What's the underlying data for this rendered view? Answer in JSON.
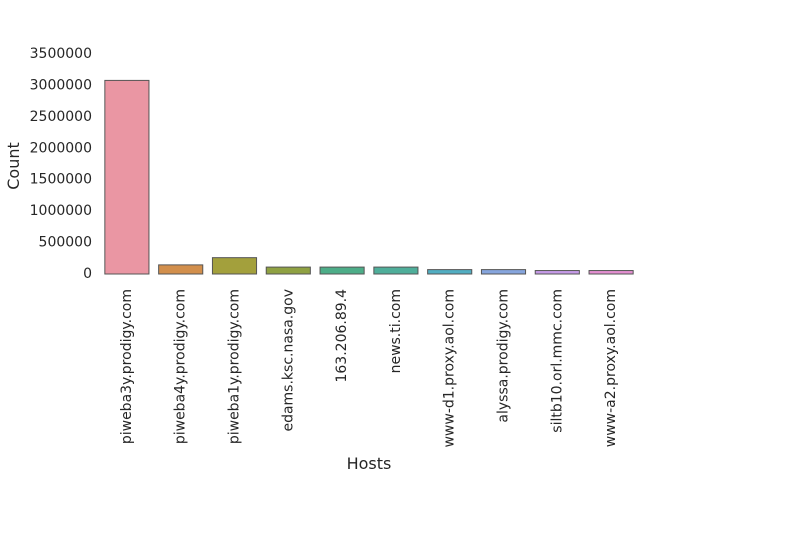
{
  "chart_data": {
    "type": "bar",
    "categories": [
      "piweba3y.prodigy.com",
      "piweba4y.prodigy.com",
      "piweba1y.prodigy.com",
      "edams.ksc.nasa.gov",
      "163.206.89.4",
      "news.ti.com",
      "www-d1.proxy.aol.com",
      "alyssa.prodigy.com",
      "siltb10.orl.mmc.com",
      "www-a2.proxy.aol.com"
    ],
    "values": [
      3080000,
      145000,
      260000,
      110000,
      110000,
      110000,
      70000,
      70000,
      55000,
      55000
    ],
    "colors": [
      "#ea96a3",
      "#d28f4c",
      "#a3a03c",
      "#8fa142",
      "#4dad88",
      "#4fae9a",
      "#52aec2",
      "#86a5dd",
      "#c59ae6",
      "#e28ed0"
    ],
    "xlabel": "Hosts",
    "ylabel": "Count",
    "ylim": [
      0,
      3500000
    ],
    "yticks": [
      "0",
      "500000",
      "1000000",
      "1500000",
      "2000000",
      "2500000",
      "3000000",
      "3500000"
    ],
    "grid": false
  }
}
